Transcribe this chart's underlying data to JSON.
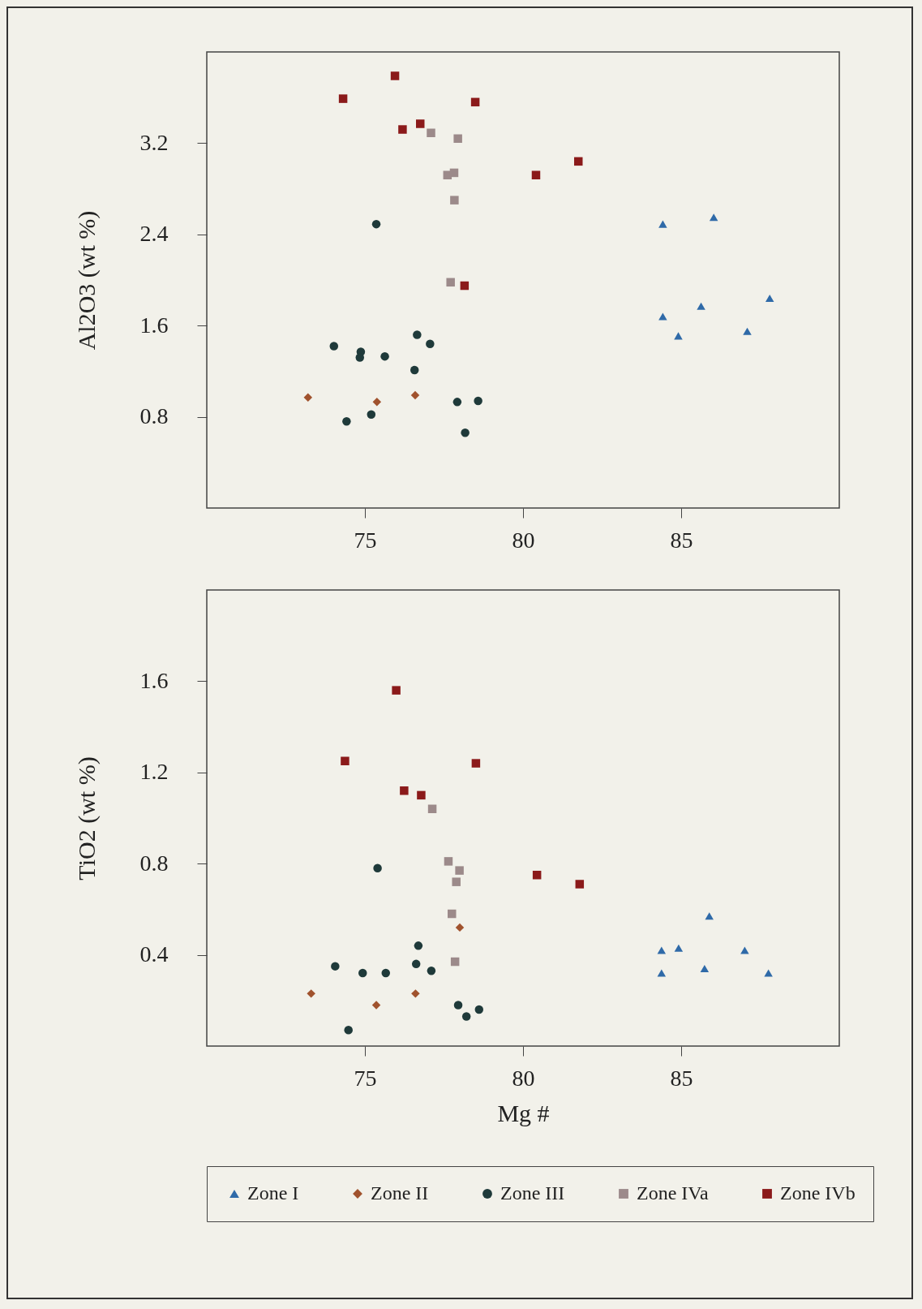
{
  "chart_data": [
    {
      "type": "scatter",
      "ylabel": "Al2O3  (wt %)",
      "xlim": [
        70,
        90
      ],
      "xticks": [
        75,
        80,
        85
      ],
      "ylim": [
        0,
        4
      ],
      "yticks": [
        0.8,
        1.6,
        2.4,
        3.2
      ],
      "legend": false,
      "series": [
        {
          "color": "#2f6aa8",
          "marker": "triangle",
          "x": [
            84.42,
            86.03,
            87.8,
            85.63,
            84.42,
            84.91,
            87.09
          ],
          "values": [
            2.49,
            2.55,
            1.84,
            1.77,
            1.68,
            1.51,
            1.55
          ]
        },
        {
          "color": "#a0522d",
          "marker": "diamond",
          "x": [
            73.2,
            75.38,
            76.59
          ],
          "values": [
            0.97,
            0.93,
            0.99
          ]
        },
        {
          "color": "#1f3a3a",
          "marker": "circle",
          "x": [
            75.36,
            74.02,
            74.87,
            74.84,
            75.63,
            76.65,
            77.06,
            76.57,
            77.92,
            78.58,
            74.42,
            75.2,
            78.17
          ],
          "values": [
            2.49,
            1.42,
            1.37,
            1.32,
            1.33,
            1.52,
            1.44,
            1.21,
            0.93,
            0.94,
            0.76,
            0.82,
            0.66
          ]
        },
        {
          "color": "#9c8a8a",
          "marker": "square",
          "x": [
            77.09,
            77.94,
            77.61,
            77.82,
            77.83,
            77.71
          ],
          "values": [
            3.29,
            3.24,
            2.92,
            2.94,
            2.7,
            1.98
          ]
        },
        {
          "color": "#8b1a1a",
          "marker": "square",
          "x": [
            74.31,
            75.95,
            78.49,
            76.19,
            76.75,
            80.41,
            81.75,
            78.15
          ],
          "values": [
            3.59,
            3.79,
            3.56,
            3.32,
            3.37,
            2.92,
            3.04,
            1.95
          ]
        }
      ]
    },
    {
      "type": "scatter",
      "xlabel": "Mg #",
      "ylabel": "TiO2 (wt %)",
      "xlim": [
        70,
        90
      ],
      "xticks": [
        75,
        80,
        85
      ],
      "ylim": [
        0,
        2
      ],
      "yticks": [
        0.4,
        0.8,
        1.2,
        1.6
      ],
      "legend": "bottom",
      "series": [
        {
          "name": "Zone I",
          "color": "#2f6aa8",
          "marker": "triangle",
          "x": [
            84.38,
            84.92,
            85.89,
            87.01,
            84.38,
            85.74,
            87.76
          ],
          "values": [
            0.42,
            0.43,
            0.57,
            0.42,
            0.32,
            0.34,
            0.32
          ]
        },
        {
          "name": "Zone II",
          "color": "#a0522d",
          "marker": "diamond",
          "x": [
            73.3,
            75.36,
            76.6,
            78.0
          ],
          "values": [
            0.23,
            0.18,
            0.23,
            0.52
          ]
        },
        {
          "name": "Zone III",
          "color": "#1f3a3a",
          "marker": "circle",
          "x": [
            75.4,
            74.06,
            74.93,
            75.66,
            76.69,
            76.62,
            77.1,
            77.95,
            78.61,
            78.21,
            74.48
          ],
          "values": [
            0.78,
            0.35,
            0.32,
            0.32,
            0.44,
            0.36,
            0.33,
            0.18,
            0.16,
            0.13,
            0.07
          ]
        },
        {
          "name": "Zone IVa",
          "color": "#9c8a8a",
          "marker": "square",
          "x": [
            77.13,
            77.64,
            77.99,
            77.89,
            77.75,
            77.85
          ],
          "values": [
            1.04,
            0.81,
            0.77,
            0.72,
            0.58,
            0.37
          ]
        },
        {
          "name": "Zone IVb",
          "color": "#8b1a1a",
          "marker": "square",
          "x": [
            75.99,
            74.37,
            78.51,
            76.24,
            76.78,
            80.44,
            81.79
          ],
          "values": [
            1.56,
            1.25,
            1.24,
            1.12,
            1.1,
            0.75,
            0.71
          ]
        }
      ]
    }
  ]
}
